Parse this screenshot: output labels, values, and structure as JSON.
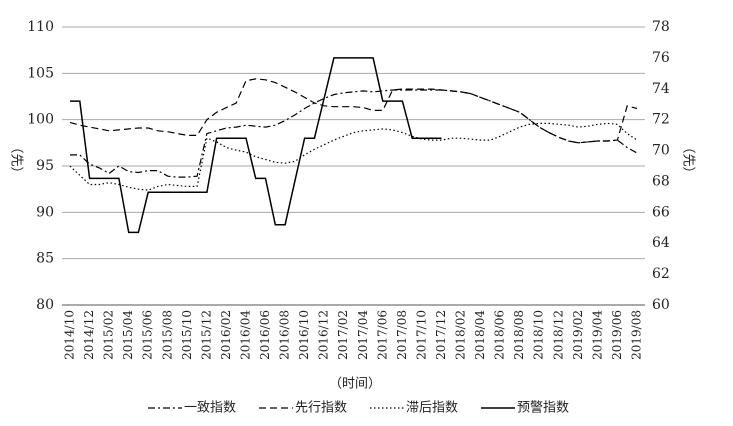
{
  "chart_data": {
    "type": "line",
    "ylabel": "（先）",
    "y2label": "（先）",
    "xlabel": "（时间）",
    "categories": [
      "2014/10",
      null,
      "2014/12",
      null,
      "2015/02",
      null,
      "2015/04",
      null,
      "2015/06",
      null,
      "2015/08",
      null,
      "2015/10",
      null,
      "2015/12",
      null,
      "2016/02",
      null,
      "2016/04",
      null,
      "2016/06",
      null,
      "2016/08",
      null,
      "2016/10",
      null,
      "2016/12",
      null,
      "2017/02",
      null,
      "2017/04",
      null,
      "2017/06",
      null,
      "2017/08",
      null,
      "2017/10",
      null,
      "2017/12",
      null,
      "2018/02",
      null,
      "2018/04",
      null,
      "2018/06",
      null,
      "2018/08",
      null,
      "2018/10",
      null,
      "2018/12",
      null,
      "2019/02",
      null,
      "2019/04",
      null,
      "2019/06",
      null,
      "2019/08"
    ],
    "ylim": [
      80,
      110
    ],
    "yticks": [
      80,
      85,
      90,
      95,
      100,
      105,
      110
    ],
    "y2lim": [
      60,
      78
    ],
    "y2ticks": [
      60,
      62,
      64,
      66,
      68,
      70,
      72,
      74,
      76,
      78
    ],
    "grid": true,
    "legend": "bottom",
    "series": [
      {
        "name": "一致指数",
        "color": "#000000",
        "dash": "dashdot",
        "values": [
          96.2,
          96.2,
          95.2,
          94.8,
          94.2,
          95,
          94.4,
          94.3,
          94.5,
          94.5,
          93.9,
          93.8,
          93.8,
          93.9,
          98.5,
          98.8,
          99.1,
          99.2,
          99.4,
          99.3,
          99.2,
          99.4,
          99.9,
          100.5,
          101.2,
          101.8,
          102.3,
          102.7,
          102.9,
          103,
          103.1,
          103,
          103.1,
          103.2,
          103.2,
          103.2,
          103.2,
          103.2,
          103.2,
          103.1,
          103,
          102.8,
          102.4,
          102,
          101.6,
          101.2,
          100.8,
          100,
          99.2,
          98.6,
          98.1,
          97.7,
          97.5,
          97.6,
          97.7,
          97.7,
          97.8,
          97,
          96.4
        ]
      },
      {
        "name": "先行指数",
        "color": "#000000",
        "dash": "dashed",
        "values": [
          99.7,
          99.4,
          99.2,
          99,
          98.8,
          98.9,
          99,
          99.1,
          99.1,
          98.8,
          98.7,
          98.5,
          98.3,
          98.3,
          100,
          100.8,
          101.3,
          101.8,
          104.2,
          104.4,
          104.3,
          104,
          103.5,
          103,
          102.4,
          101.8,
          101.5,
          101.4,
          101.4,
          101.4,
          101.3,
          101,
          101,
          103.2,
          103.3,
          103.3,
          103.3,
          103.3,
          103.2,
          103.1,
          103,
          102.8,
          102.4,
          102,
          101.6,
          101.2,
          100.8,
          100,
          99.2,
          98.6,
          98.1,
          97.7,
          97.5,
          97.6,
          97.7,
          97.7,
          97.8,
          101.5,
          101.2
        ]
      },
      {
        "name": "滞后指数",
        "color": "#000000",
        "dash": "dotted",
        "values": [
          95,
          94,
          93,
          93,
          93.2,
          93,
          92.7,
          92.5,
          92.4,
          92.8,
          93,
          92.9,
          92.8,
          92.8,
          98,
          97.6,
          97,
          96.7,
          96.5,
          96,
          95.7,
          95.4,
          95.3,
          95.5,
          96.2,
          96.8,
          97.3,
          97.8,
          98.2,
          98.6,
          98.8,
          98.9,
          99,
          98.9,
          98.6,
          98.2,
          97.9,
          97.8,
          97.8,
          98,
          98,
          97.9,
          97.8,
          97.8,
          98.2,
          98.7,
          99.2,
          99.5,
          99.6,
          99.6,
          99.5,
          99.4,
          99.2,
          99.3,
          99.5,
          99.6,
          99.5,
          98.5,
          97.8
        ]
      },
      {
        "name": "预警指数",
        "color": "#000000",
        "dash": "solid",
        "axis": "y2",
        "values": [
          73.2,
          73.2,
          68.2,
          68.2,
          68.2,
          68.2,
          64.7,
          64.7,
          67.3,
          67.3,
          67.3,
          67.3,
          67.3,
          67.3,
          67.3,
          70.8,
          70.8,
          70.8,
          70.8,
          68.2,
          68.2,
          65.2,
          65.2,
          68,
          70.8,
          70.8,
          73.4,
          76,
          76,
          76,
          76,
          76,
          73.2,
          73.2,
          73.2,
          70.8,
          70.8,
          70.8,
          70.8,
          null,
          null,
          null,
          null,
          null,
          null,
          null,
          null,
          null,
          null,
          null,
          null,
          null,
          null,
          null,
          null,
          null,
          null,
          null,
          null
        ]
      }
    ]
  }
}
